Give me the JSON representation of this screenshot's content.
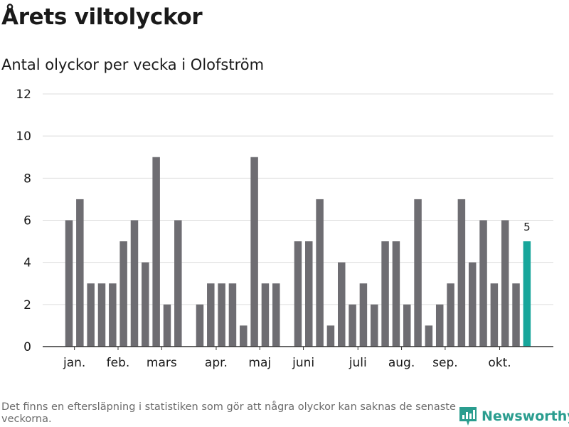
{
  "title": "Årets viltolyckor",
  "subtitle": "Antal olyckor per vecka i Olofström",
  "footnote": "Det finns en eftersläpning i statistiken som gör att några olyckor kan saknas de senaste veckorna.",
  "brand": {
    "name": "Newsworthy",
    "icon": "newsworthy-logo-icon"
  },
  "colors": {
    "bar": "#6e6d72",
    "highlight": "#17a69b",
    "grid": "#dddddd",
    "axis": "#333333",
    "text": "#1a1a1a"
  },
  "chart_data": {
    "type": "bar",
    "title": "Antal olyckor per vecka i Olofström",
    "xlabel": "",
    "ylabel": "",
    "ylim": [
      0,
      12
    ],
    "yticks": [
      0,
      2,
      4,
      6,
      8,
      10,
      12
    ],
    "grid": true,
    "weeks": [
      1,
      2,
      3,
      4,
      5,
      6,
      7,
      8,
      9,
      10,
      11,
      12,
      13,
      14,
      15,
      16,
      17,
      18,
      19,
      20,
      21,
      22,
      23,
      24,
      25,
      26,
      27,
      28,
      29,
      30,
      31,
      32,
      33,
      34,
      35,
      36,
      37,
      38,
      39,
      40,
      41,
      42,
      43
    ],
    "values": [
      6,
      7,
      3,
      3,
      3,
      5,
      6,
      4,
      9,
      2,
      6,
      0,
      2,
      3,
      3,
      3,
      1,
      9,
      3,
      3,
      0,
      5,
      5,
      7,
      1,
      4,
      2,
      3,
      2,
      5,
      5,
      2,
      7,
      1,
      2,
      3,
      7,
      4,
      6,
      3,
      6,
      3,
      5
    ],
    "highlight_index": 42,
    "highlight_label": "5",
    "month_labels": [
      {
        "label": "jan.",
        "week": 1.5
      },
      {
        "label": "feb.",
        "week": 5.5
      },
      {
        "label": "mars",
        "week": 9.5
      },
      {
        "label": "apr.",
        "week": 14.5
      },
      {
        "label": "maj",
        "week": 18.5
      },
      {
        "label": "juni",
        "week": 22.5
      },
      {
        "label": "juli",
        "week": 27.5
      },
      {
        "label": "aug.",
        "week": 31.5
      },
      {
        "label": "sep.",
        "week": 35.5
      },
      {
        "label": "okt.",
        "week": 40.5
      }
    ]
  }
}
